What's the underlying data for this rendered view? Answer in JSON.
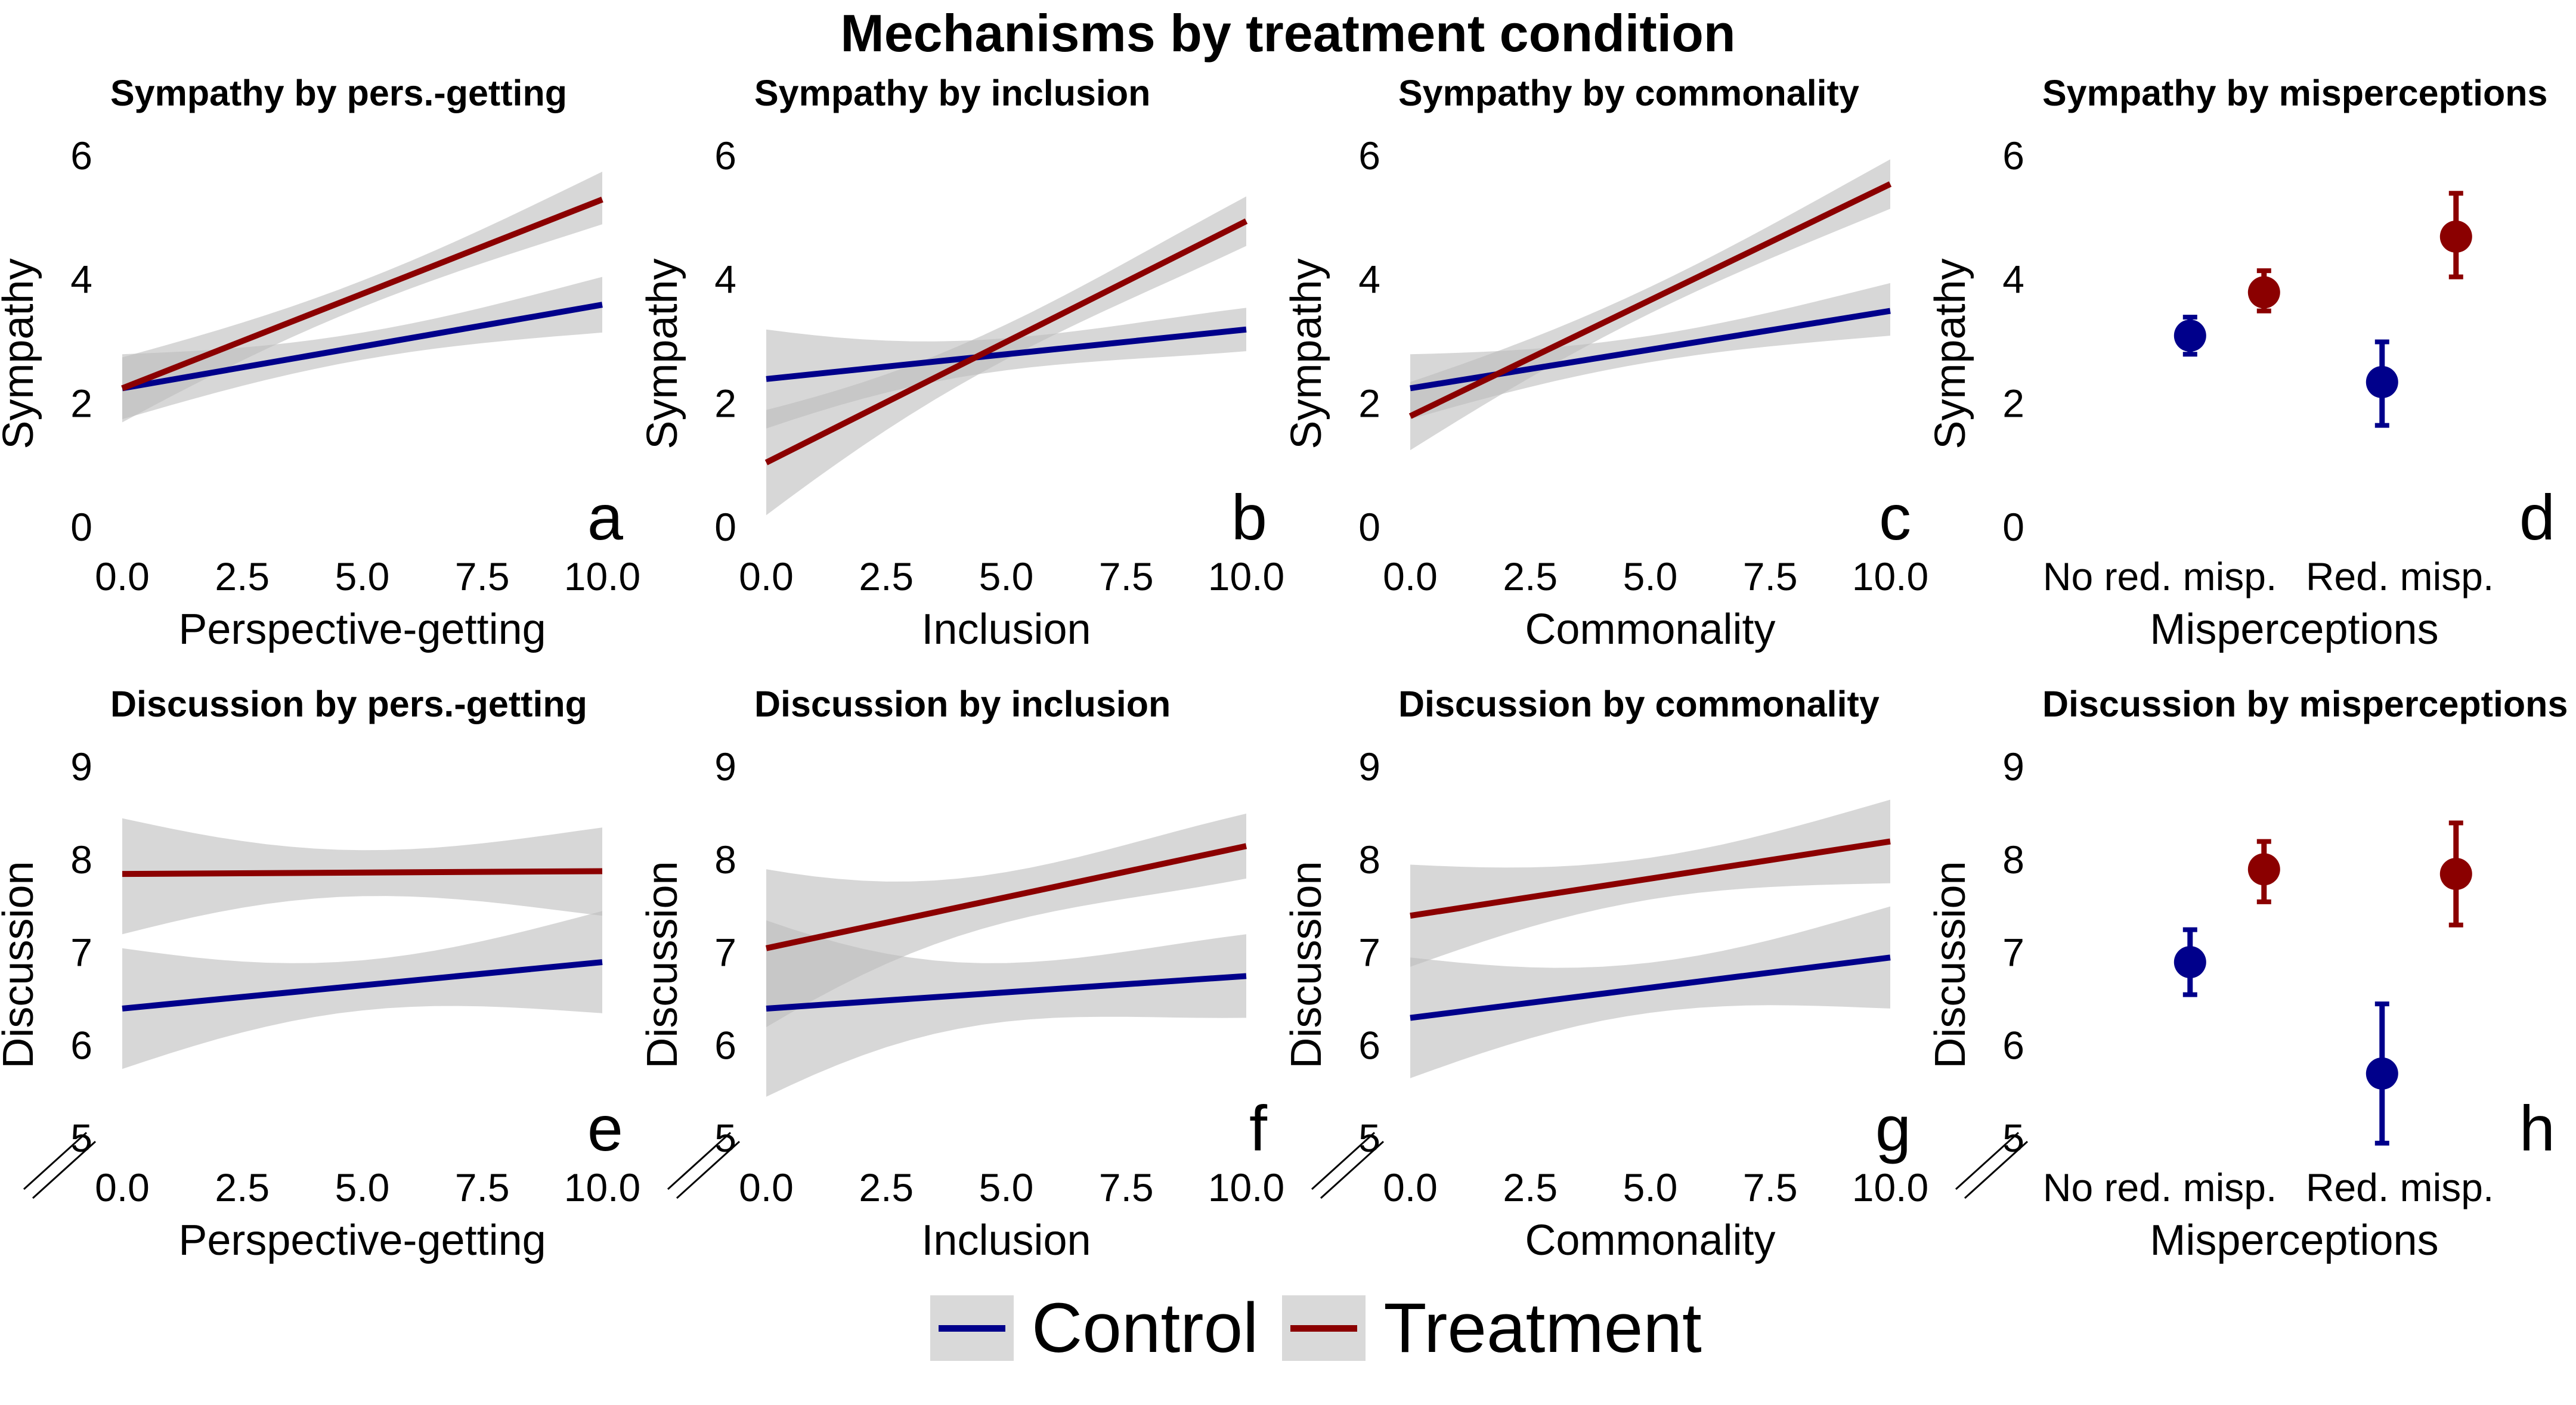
{
  "title": "Mechanisms by treatment condition",
  "legend": {
    "items": [
      {
        "label": "Control",
        "color": "#00008B"
      },
      {
        "label": "Treatment",
        "color": "#8B0000"
      }
    ]
  },
  "colors": {
    "control": "#00008B",
    "treatment": "#8B0000",
    "ci_band": "#bdbdbd"
  },
  "chart_data": [
    {
      "type": "line",
      "letter": "a",
      "title": "Sympathy by pers.-getting",
      "xlabel": "Perspective-getting",
      "ylabel": "Sympathy",
      "xlim": [
        0,
        10
      ],
      "ylim": [
        0,
        6
      ],
      "xticks": [
        "0.0",
        "2.5",
        "5.0",
        "7.5",
        "10.0"
      ],
      "yticks": [
        "0",
        "2",
        "4",
        "6"
      ],
      "axis_break": false,
      "series": [
        {
          "name": "Control",
          "x": [
            0,
            10
          ],
          "y": [
            2.25,
            3.6
          ],
          "ci_lower": [
            1.75,
            3.15
          ],
          "ci_upper": [
            2.8,
            4.05
          ]
        },
        {
          "name": "Treatment",
          "x": [
            0,
            10
          ],
          "y": [
            2.25,
            5.3
          ],
          "ci_lower": [
            1.7,
            4.9
          ],
          "ci_upper": [
            2.75,
            5.75
          ]
        }
      ]
    },
    {
      "type": "line",
      "letter": "b",
      "title": "Sympathy by inclusion",
      "xlabel": "Inclusion",
      "ylabel": "Sympathy",
      "xlim": [
        0,
        10
      ],
      "ylim": [
        0,
        6
      ],
      "xticks": [
        "0.0",
        "2.5",
        "5.0",
        "7.5",
        "10.0"
      ],
      "yticks": [
        "0",
        "2",
        "4",
        "6"
      ],
      "axis_break": false,
      "series": [
        {
          "name": "Control",
          "x": [
            0,
            10
          ],
          "y": [
            2.4,
            3.2
          ],
          "ci_lower": [
            1.6,
            2.85
          ],
          "ci_upper": [
            3.2,
            3.55
          ]
        },
        {
          "name": "Treatment",
          "x": [
            0,
            10
          ],
          "y": [
            1.05,
            4.95
          ],
          "ci_lower": [
            0.2,
            4.55
          ],
          "ci_upper": [
            1.9,
            5.35
          ]
        }
      ]
    },
    {
      "type": "line",
      "letter": "c",
      "title": "Sympathy by commonality",
      "xlabel": "Commonality",
      "ylabel": "Sympathy",
      "xlim": [
        0,
        10
      ],
      "ylim": [
        0,
        6
      ],
      "xticks": [
        "0.0",
        "2.5",
        "5.0",
        "7.5",
        "10.0"
      ],
      "yticks": [
        "0",
        "2",
        "4",
        "6"
      ],
      "axis_break": false,
      "series": [
        {
          "name": "Control",
          "x": [
            0,
            10
          ],
          "y": [
            2.25,
            3.5
          ],
          "ci_lower": [
            1.75,
            3.1
          ],
          "ci_upper": [
            2.8,
            3.95
          ]
        },
        {
          "name": "Treatment",
          "x": [
            0,
            10
          ],
          "y": [
            1.8,
            5.55
          ],
          "ci_lower": [
            1.25,
            5.15
          ],
          "ci_upper": [
            2.35,
            5.95
          ]
        }
      ]
    },
    {
      "type": "scatter",
      "letter": "d",
      "title": "Sympathy by misperceptions",
      "xlabel": "Misperceptions",
      "ylabel": "Sympathy",
      "ylim": [
        0,
        6
      ],
      "categories": [
        "No red. misp.",
        "Red. misp."
      ],
      "yticks": [
        "0",
        "2",
        "4",
        "6"
      ],
      "axis_break": false,
      "series": [
        {
          "name": "Control",
          "values": [
            3.1,
            2.35
          ],
          "ci_lower": [
            2.8,
            1.65
          ],
          "ci_upper": [
            3.4,
            3.0
          ]
        },
        {
          "name": "Treatment",
          "values": [
            3.8,
            4.7
          ],
          "ci_lower": [
            3.5,
            4.05
          ],
          "ci_upper": [
            4.15,
            5.4
          ]
        }
      ]
    },
    {
      "type": "line",
      "letter": "e",
      "title": "Discussion by pers.-getting",
      "xlabel": "Perspective-getting",
      "ylabel": "Discussion",
      "xlim": [
        0,
        10
      ],
      "ylim": [
        5,
        9
      ],
      "xticks": [
        "0.0",
        "2.5",
        "5.0",
        "7.5",
        "10.0"
      ],
      "yticks": [
        "5",
        "6",
        "7",
        "8",
        "9"
      ],
      "axis_break": true,
      "series": [
        {
          "name": "Control",
          "x": [
            0,
            10
          ],
          "y": [
            6.4,
            6.9
          ],
          "ci_lower": [
            5.75,
            6.35
          ],
          "ci_upper": [
            7.05,
            7.45
          ]
        },
        {
          "name": "Treatment",
          "x": [
            0,
            10
          ],
          "y": [
            7.85,
            7.88
          ],
          "ci_lower": [
            7.2,
            7.4
          ],
          "ci_upper": [
            8.45,
            8.35
          ]
        }
      ]
    },
    {
      "type": "line",
      "letter": "f",
      "title": "Discussion by inclusion",
      "xlabel": "Inclusion",
      "ylabel": "Discussion",
      "xlim": [
        0,
        10
      ],
      "ylim": [
        5,
        9
      ],
      "xticks": [
        "0.0",
        "2.5",
        "5.0",
        "7.5",
        "10.0"
      ],
      "yticks": [
        "5",
        "6",
        "7",
        "8",
        "9"
      ],
      "axis_break": true,
      "series": [
        {
          "name": "Control",
          "x": [
            0,
            10
          ],
          "y": [
            6.4,
            6.75
          ],
          "ci_lower": [
            5.45,
            6.3
          ],
          "ci_upper": [
            7.35,
            7.2
          ]
        },
        {
          "name": "Treatment",
          "x": [
            0,
            10
          ],
          "y": [
            7.05,
            8.15
          ],
          "ci_lower": [
            6.2,
            7.8
          ],
          "ci_upper": [
            7.9,
            8.5
          ]
        }
      ]
    },
    {
      "type": "line",
      "letter": "g",
      "title": "Discussion by commonality",
      "xlabel": "Commonality",
      "ylabel": "Discussion",
      "xlim": [
        0,
        10
      ],
      "ylim": [
        5,
        9
      ],
      "xticks": [
        "0.0",
        "2.5",
        "5.0",
        "7.5",
        "10.0"
      ],
      "yticks": [
        "5",
        "6",
        "7",
        "8",
        "9"
      ],
      "axis_break": true,
      "series": [
        {
          "name": "Control",
          "x": [
            0,
            10
          ],
          "y": [
            6.3,
            6.95
          ],
          "ci_lower": [
            5.65,
            6.4
          ],
          "ci_upper": [
            6.95,
            7.5
          ]
        },
        {
          "name": "Treatment",
          "x": [
            0,
            10
          ],
          "y": [
            7.4,
            8.2
          ],
          "ci_lower": [
            6.85,
            7.75
          ],
          "ci_upper": [
            7.95,
            8.65
          ]
        }
      ]
    },
    {
      "type": "scatter",
      "letter": "h",
      "title": "Discussion by misperceptions",
      "xlabel": "Misperceptions",
      "ylabel": "Discussion",
      "ylim": [
        5,
        9
      ],
      "categories": [
        "No red. misp.",
        "Red. misp."
      ],
      "yticks": [
        "5",
        "6",
        "7",
        "8",
        "9"
      ],
      "axis_break": true,
      "series": [
        {
          "name": "Control",
          "values": [
            6.9,
            5.7
          ],
          "ci_lower": [
            6.55,
            4.95
          ],
          "ci_upper": [
            7.25,
            6.45
          ]
        },
        {
          "name": "Treatment",
          "values": [
            7.9,
            7.85
          ],
          "ci_lower": [
            7.55,
            7.3
          ],
          "ci_upper": [
            8.2,
            8.4
          ]
        }
      ]
    }
  ]
}
